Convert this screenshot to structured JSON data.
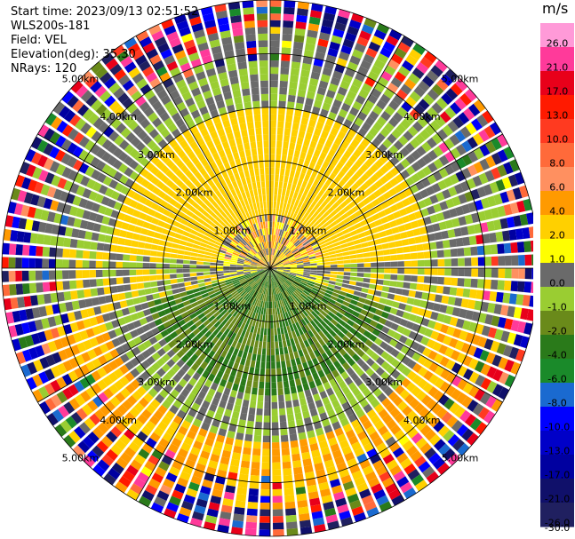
{
  "header": {
    "start_time": "Start time: 2023/09/13 02:51:52",
    "instrument": "WLS200s-181",
    "field": "Field: VEL",
    "elevation": "Elevation(deg): 35.30",
    "nrays": "NRays: 120"
  },
  "chart_data": {
    "type": "heatmap",
    "subtype": "ppi-polar",
    "title": "",
    "units": "m/s",
    "nrays": 120,
    "range_rings_km": [
      1.0,
      2.0,
      3.0,
      4.0,
      5.0
    ],
    "range_ring_labels": [
      "1.00km",
      "2.00km",
      "3.00km",
      "4.00km",
      "5.00km"
    ],
    "spokes_deg": [
      0,
      30,
      60,
      90,
      120,
      150,
      180,
      210,
      240,
      270,
      300,
      330
    ],
    "colorbar": {
      "label": "m/s",
      "ticks": [
        "26.0",
        "21.0",
        "17.0",
        "13.0",
        "10.0",
        "8.0",
        "6.0",
        "4.0",
        "2.0",
        "1.0",
        "0.0",
        "-1.0",
        "-2.0",
        "-4.0",
        "-6.0",
        "-8.0",
        "-10.0",
        "-13.0",
        "-17.0",
        "-21.0",
        "-26.0",
        "-30.0"
      ],
      "levels": [
        30,
        26,
        21,
        17,
        13,
        10,
        8,
        6,
        4,
        2,
        1,
        -1,
        -2,
        -4,
        -6,
        -8,
        -10,
        -13,
        -17,
        -21,
        -26,
        -30
      ],
      "colors": [
        "#ff9ad8",
        "#ff3a9a",
        "#e8001a",
        "#ff1a00",
        "#ff3a20",
        "#ff6a3a",
        "#ff9060",
        "#ff9a00",
        "#ffd000",
        "#ffff00",
        "#6a6a6a",
        "#9acd32",
        "#6a8a1a",
        "#2a7a1a",
        "#1a8a2a",
        "#1a6ad0",
        "#0000ff",
        "#0000c8",
        "#0000a0",
        "#10106a",
        "#202060"
      ]
    },
    "pattern": {
      "near_field": "grey/orange mixture within 1 km, orange to the north-west",
      "inner_south": "green (-2 to -6 m/s) south of radar",
      "ring_north": "yellow band 1-3 km north (+2 to +4 m/s)",
      "ring_south": "yellow/orange band 3-5 km south-east",
      "outer": "noisy random colours beyond ~4.5 km"
    }
  }
}
